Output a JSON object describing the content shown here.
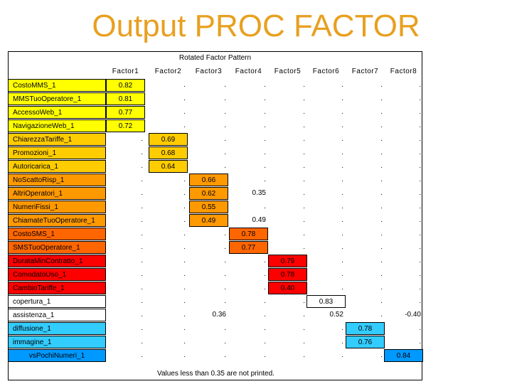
{
  "title": "Output PROC FACTOR",
  "table": {
    "header": "Rotated Factor Pattern",
    "columns": [
      "Factor1",
      "Factor2",
      "Factor3",
      "Factor4",
      "Factor5",
      "Factor6",
      "Factor7",
      "Factor8"
    ],
    "rows": [
      {
        "label": "CostoMMS_1",
        "color": "#FFFF00",
        "values": [
          "0.82",
          ".",
          ".",
          ".",
          ".",
          ".",
          ".",
          "."
        ],
        "hl": [
          0
        ]
      },
      {
        "label": "MMSTuoOperatore_1",
        "color": "#FFFF00",
        "values": [
          "0.81",
          ".",
          ".",
          ".",
          ".",
          ".",
          ".",
          "."
        ],
        "hl": [
          0
        ]
      },
      {
        "label": "AccessoWeb_1",
        "color": "#FFFF00",
        "values": [
          "0.77",
          ".",
          ".",
          ".",
          ".",
          ".",
          ".",
          "."
        ],
        "hl": [
          0
        ]
      },
      {
        "label": "NavigazioneWeb_1",
        "color": "#FFFF00",
        "values": [
          "0.72",
          ".",
          ".",
          ".",
          ".",
          ".",
          ".",
          "."
        ],
        "hl": [
          0
        ]
      },
      {
        "label": "ChiarezzaTariffe_1",
        "color": "#FFCC00",
        "values": [
          ".",
          "0.69",
          ".",
          ".",
          ".",
          ".",
          ".",
          "."
        ],
        "hl": [
          1
        ]
      },
      {
        "label": "Promozioni_1",
        "color": "#FFCC00",
        "values": [
          ".",
          "0.68",
          ".",
          ".",
          ".",
          ".",
          ".",
          "."
        ],
        "hl": [
          1
        ]
      },
      {
        "label": "Autoricarica_1",
        "color": "#FFCC00",
        "values": [
          ".",
          "0.64",
          ".",
          ".",
          ".",
          ".",
          ".",
          "."
        ],
        "hl": [
          1
        ]
      },
      {
        "label": "NoScattoRisp_1",
        "color": "#FF9900",
        "values": [
          ".",
          ".",
          "0.66",
          ".",
          ".",
          ".",
          ".",
          "."
        ],
        "hl": [
          2
        ]
      },
      {
        "label": "AltriOperatori_1",
        "color": "#FF9900",
        "values": [
          ".",
          ".",
          "0.62",
          "0.35",
          ".",
          ".",
          ".",
          "."
        ],
        "hl": [
          2
        ]
      },
      {
        "label": "NumeriFissi_1",
        "color": "#FF9900",
        "values": [
          ".",
          ".",
          "0.55",
          ".",
          ".",
          ".",
          ".",
          "."
        ],
        "hl": [
          2
        ]
      },
      {
        "label": "ChiamateTuoOperatore_1",
        "color": "#FF9900",
        "values": [
          ".",
          ".",
          "0.49",
          "0.49",
          ".",
          ".",
          ".",
          "."
        ],
        "hl": [
          2
        ]
      },
      {
        "label": "CostoSMS_1",
        "color": "#FF6600",
        "values": [
          ".",
          ".",
          ".",
          "0.78",
          ".",
          ".",
          ".",
          "."
        ],
        "hl": [
          3
        ]
      },
      {
        "label": "SMSTuoOperatore_1",
        "color": "#FF6600",
        "values": [
          ".",
          ".",
          ".",
          "0.77",
          ".",
          ".",
          ".",
          "."
        ],
        "hl": [
          3
        ]
      },
      {
        "label": "DurataMinContratto_1",
        "color": "#FF0000",
        "values": [
          ".",
          ".",
          ".",
          ".",
          "0.79",
          ".",
          ".",
          "."
        ],
        "hl": [
          4
        ]
      },
      {
        "label": "ComodatoUso_1",
        "color": "#FF0000",
        "values": [
          ".",
          ".",
          ".",
          ".",
          "0.78",
          ".",
          ".",
          "."
        ],
        "hl": [
          4
        ]
      },
      {
        "label": "CambioTariffe_1",
        "color": "#FF0000",
        "values": [
          ".",
          ".",
          ".",
          ".",
          "0.40",
          ".",
          ".",
          "."
        ],
        "hl": [
          4
        ]
      },
      {
        "label": "copertura_1",
        "color": "#FFFFFF",
        "values": [
          ".",
          ".",
          ".",
          ".",
          ".",
          "0.83",
          ".",
          "."
        ],
        "hl": [
          5
        ]
      },
      {
        "label": "assistenza_1",
        "color": "#FFFFFF",
        "values": [
          ".",
          ".",
          "0.36",
          ".",
          ".",
          "0.52",
          ".",
          "-0.40"
        ],
        "hl": []
      },
      {
        "label": "diffusione_1",
        "color": "#33CCFF",
        "values": [
          ".",
          ".",
          ".",
          ".",
          ".",
          ".",
          "0.78",
          "."
        ],
        "hl": [
          6
        ]
      },
      {
        "label": "immagine_1",
        "color": "#33CCFF",
        "values": [
          ".",
          ".",
          ".",
          ".",
          ".",
          ".",
          "0.76",
          "."
        ],
        "hl": [
          6
        ]
      },
      {
        "label": "vsPochiNumeri_1",
        "color": "#0099FF",
        "values": [
          ".",
          ".",
          ".",
          ".",
          ".",
          ".",
          ".",
          "0.84"
        ],
        "hl": [
          7
        ],
        "center": true
      }
    ],
    "footnote": "Values less than 0.35 are not printed."
  }
}
